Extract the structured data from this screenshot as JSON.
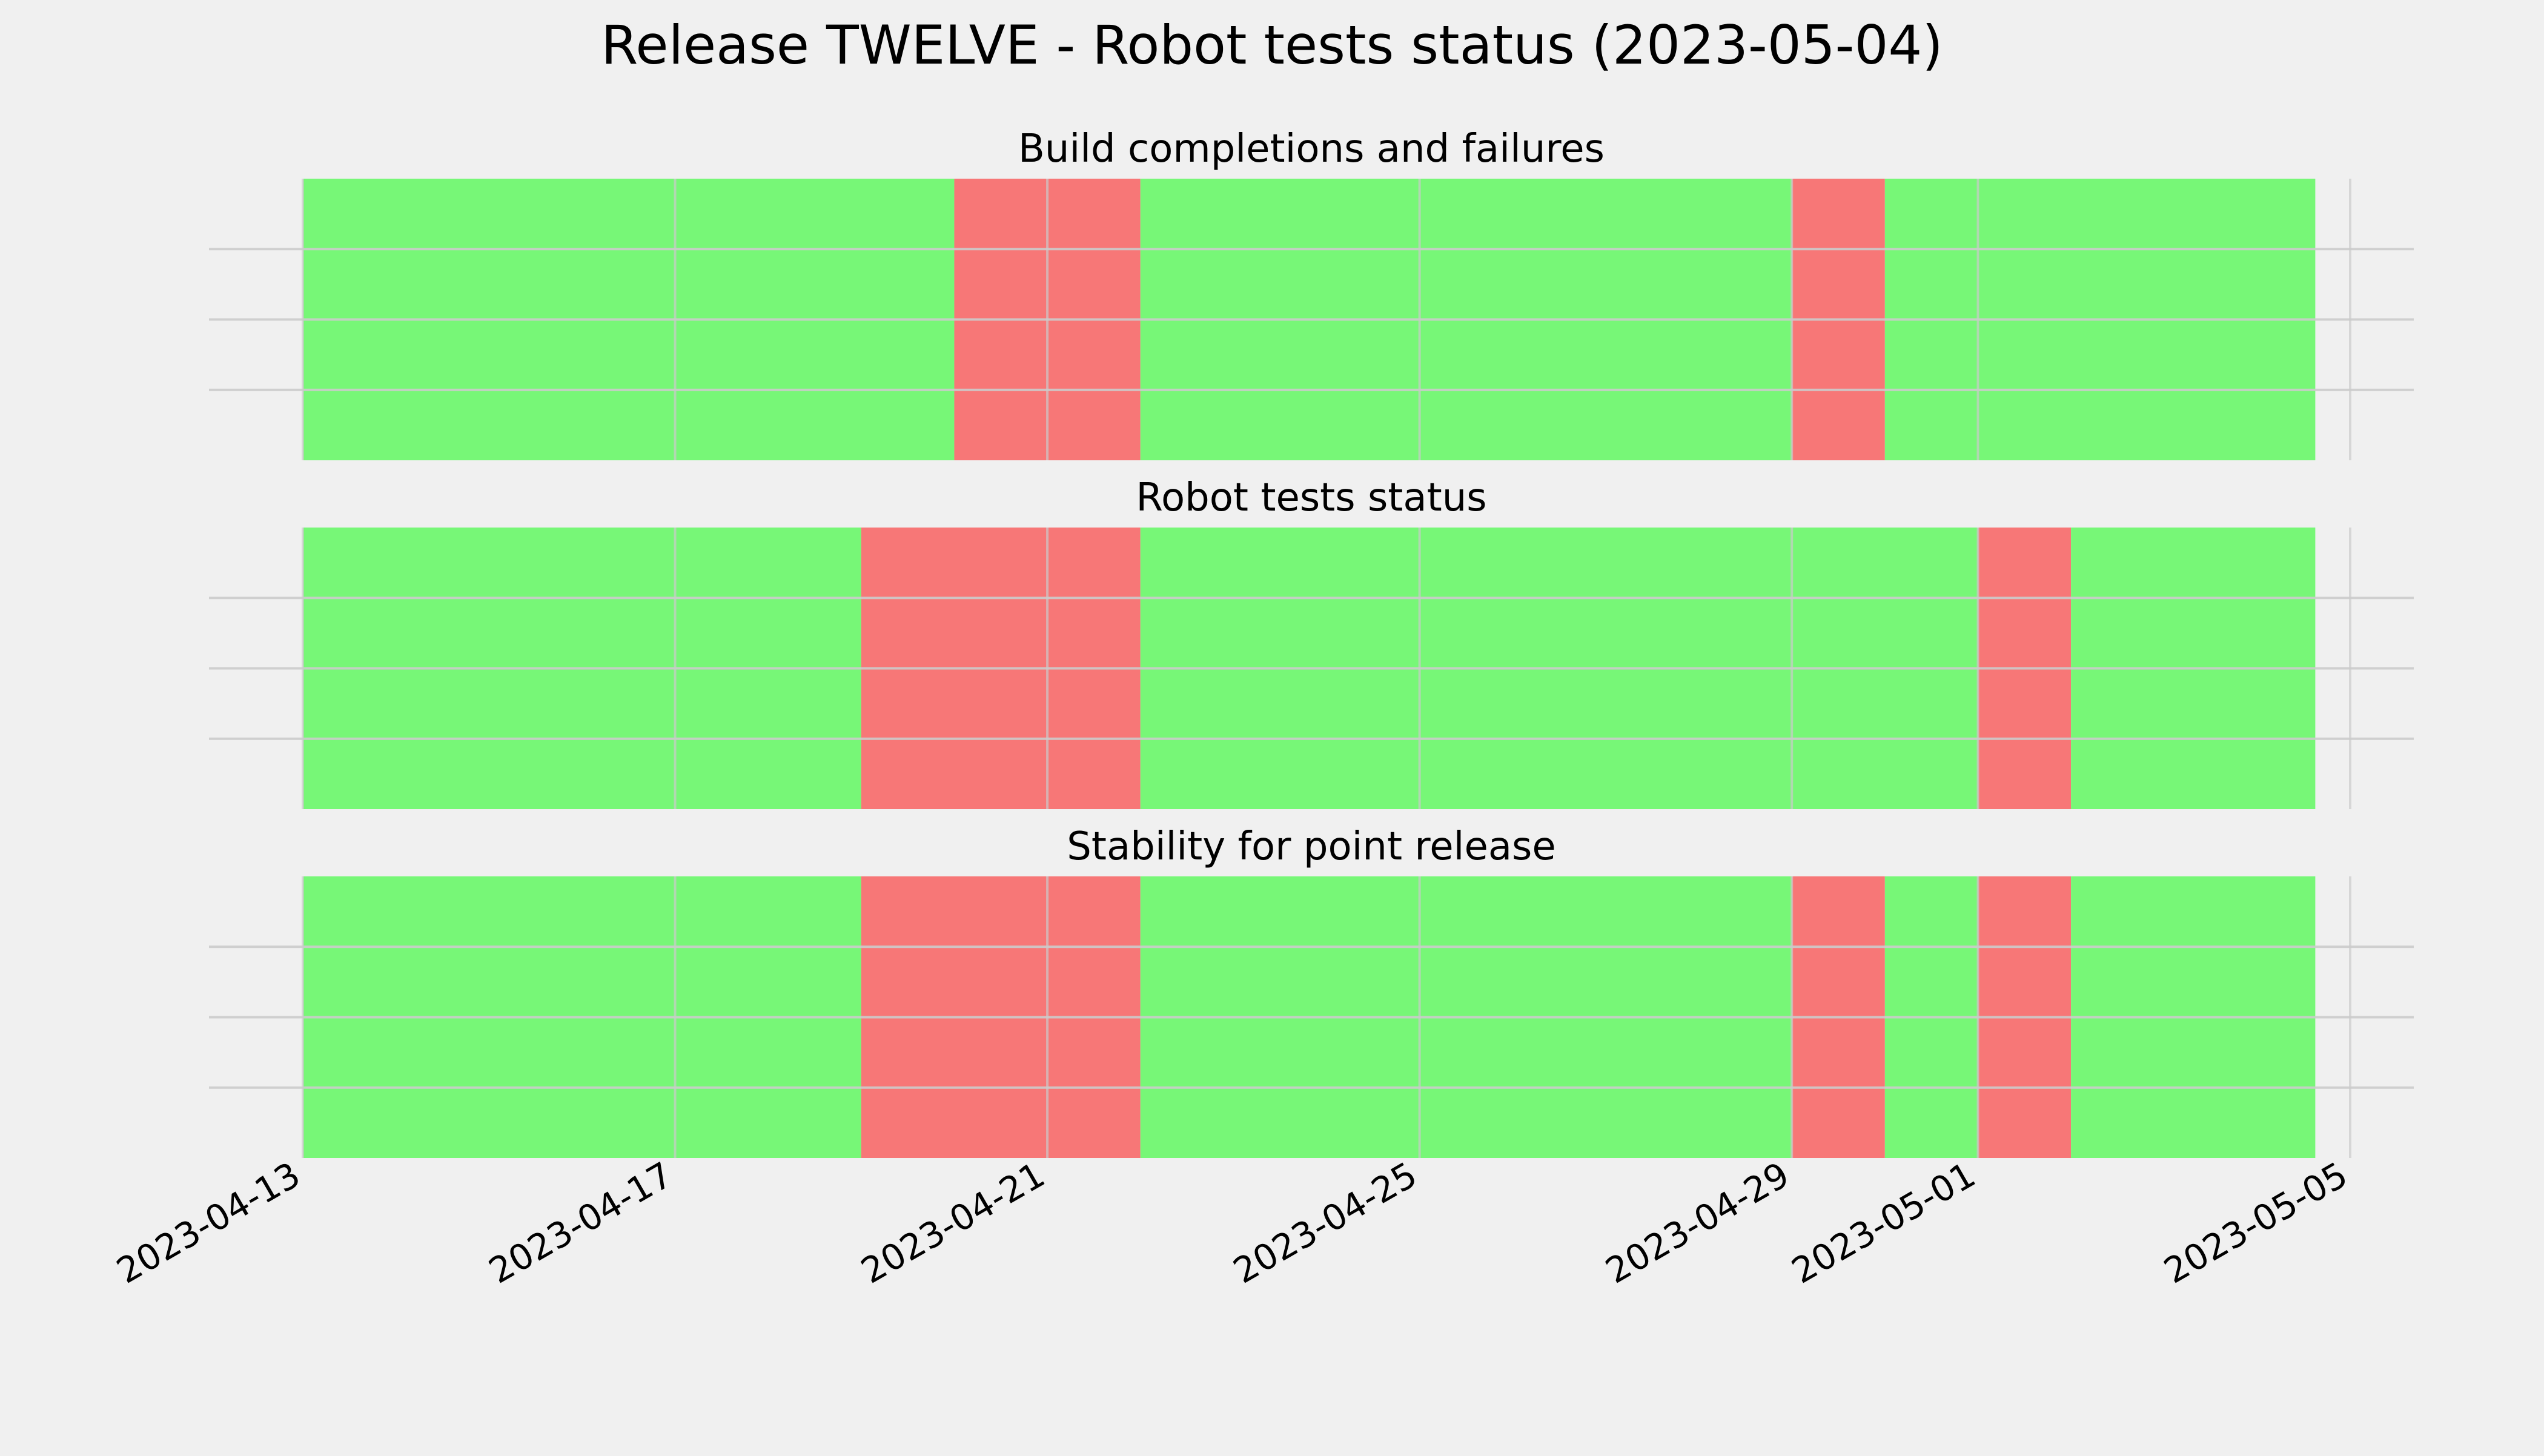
{
  "chart_data": {
    "type": "timeline",
    "title": "Release TWELVE - Robot tests status (2023-05-04)",
    "xlim": [
      "2023-04-13",
      "2023-05-05"
    ],
    "x_ticks": [
      "2023-04-13",
      "2023-04-17",
      "2023-04-21",
      "2023-04-25",
      "2023-04-29",
      "2023-05-01",
      "2023-05-05"
    ],
    "grid": true,
    "colors": {
      "pass": "#77f777",
      "fail": "#f77777",
      "background": "#f0f0f0",
      "grid": "#cbcbcb"
    },
    "panels": [
      {
        "title": "Build completions and failures",
        "segments": [
          {
            "start": "2023-04-13",
            "end": "2023-04-20",
            "status": "pass"
          },
          {
            "start": "2023-04-20",
            "end": "2023-04-22",
            "status": "fail"
          },
          {
            "start": "2023-04-22",
            "end": "2023-04-29",
            "status": "pass"
          },
          {
            "start": "2023-04-29",
            "end": "2023-04-30",
            "status": "fail"
          },
          {
            "start": "2023-04-30",
            "end": "2023-05-04 15:00",
            "status": "pass"
          }
        ]
      },
      {
        "title": "Robot tests status",
        "segments": [
          {
            "start": "2023-04-13",
            "end": "2023-04-19",
            "status": "pass"
          },
          {
            "start": "2023-04-19",
            "end": "2023-04-22",
            "status": "fail"
          },
          {
            "start": "2023-04-22",
            "end": "2023-05-01",
            "status": "pass"
          },
          {
            "start": "2023-05-01",
            "end": "2023-05-02",
            "status": "fail"
          },
          {
            "start": "2023-05-02",
            "end": "2023-05-04 15:00",
            "status": "pass"
          }
        ]
      },
      {
        "title": "Stability for point release",
        "segments": [
          {
            "start": "2023-04-13",
            "end": "2023-04-19",
            "status": "pass"
          },
          {
            "start": "2023-04-19",
            "end": "2023-04-22",
            "status": "fail"
          },
          {
            "start": "2023-04-22",
            "end": "2023-04-29",
            "status": "pass"
          },
          {
            "start": "2023-04-29",
            "end": "2023-04-30",
            "status": "fail"
          },
          {
            "start": "2023-04-30",
            "end": "2023-05-01",
            "status": "pass"
          },
          {
            "start": "2023-05-01",
            "end": "2023-05-02",
            "status": "fail"
          },
          {
            "start": "2023-05-02",
            "end": "2023-05-04 15:00",
            "status": "pass"
          }
        ]
      }
    ]
  }
}
